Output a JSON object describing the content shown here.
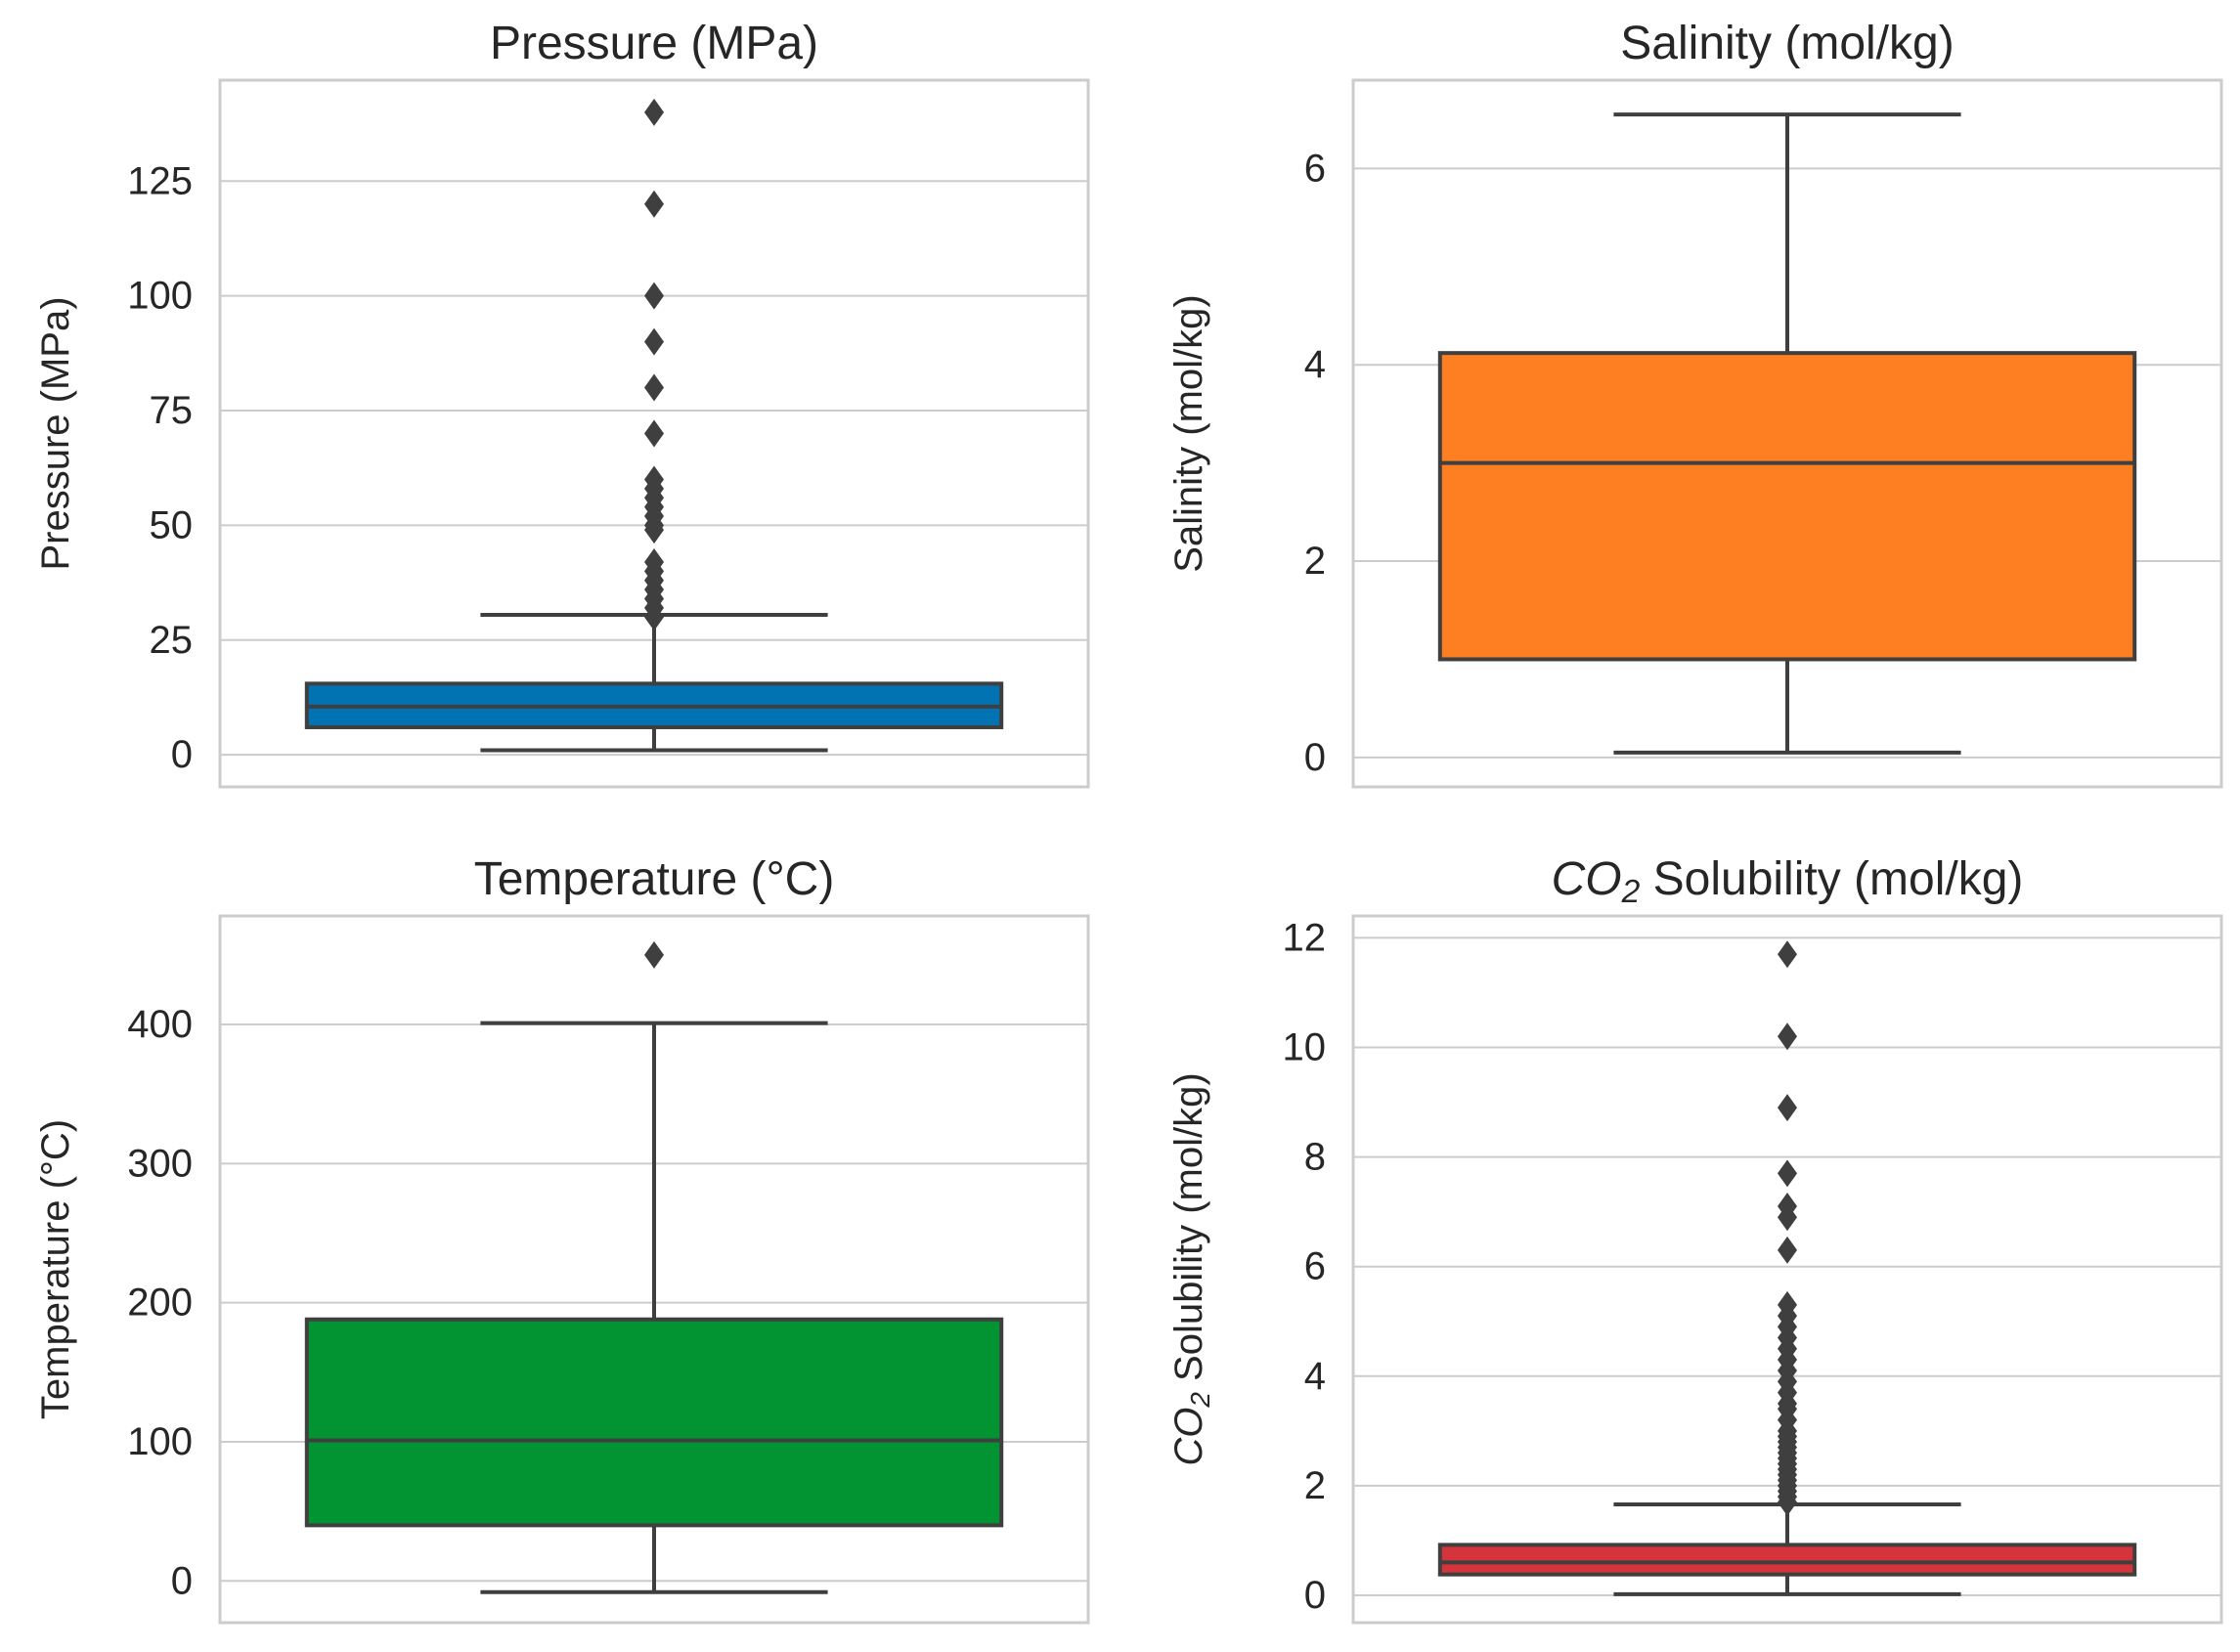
{
  "chart_data": [
    {
      "type": "box",
      "title": "Pressure (MPa)",
      "ylabel": "Pressure (MPa)",
      "ylim": [
        -7,
        147
      ],
      "yticks": [
        0,
        25,
        50,
        75,
        100,
        125
      ],
      "ytick_labels": [
        "0",
        "25",
        "50",
        "75",
        "100",
        "125"
      ],
      "color": "#0173b2",
      "box": {
        "whisker_low": 1,
        "q1": 6,
        "median": 10.5,
        "q3": 15.5,
        "whisker_high": 30.5
      },
      "outliers": [
        30,
        32,
        34,
        36,
        38,
        40,
        42,
        49,
        50,
        52,
        54,
        56,
        58,
        60,
        70,
        80,
        90,
        100,
        120,
        140
      ]
    },
    {
      "type": "box",
      "title": "Salinity (mol/kg)",
      "ylabel": "Salinity (mol/kg)",
      "ylim": [
        -0.3,
        6.9
      ],
      "yticks": [
        0,
        2,
        4,
        6
      ],
      "ytick_labels": [
        "0",
        "2",
        "4",
        "6"
      ],
      "color": "#fe7f22",
      "box": {
        "whisker_low": 0.05,
        "q1": 1.0,
        "median": 3.0,
        "q3": 4.12,
        "whisker_high": 6.55
      },
      "outliers": []
    },
    {
      "type": "box",
      "title": "Temperature (°C)",
      "ylabel": "Temperature (°C)",
      "ylim": [
        -30,
        478
      ],
      "yticks": [
        0,
        100,
        200,
        300,
        400
      ],
      "ytick_labels": [
        "0",
        "100",
        "200",
        "300",
        "400"
      ],
      "color": "#029333",
      "box": {
        "whisker_low": -8,
        "q1": 40,
        "median": 101,
        "q3": 188,
        "whisker_high": 401
      },
      "outliers": [
        450
      ]
    },
    {
      "type": "box",
      "title_prefix": "CO",
      "title_sub": "2",
      "title_suffix": " Solubility (mol/kg)",
      "ylabel_prefix": "CO",
      "ylabel_sub": "2",
      "ylabel_suffix": " Solubility (mol/kg)",
      "ylim": [
        -0.5,
        12.4
      ],
      "yticks": [
        0,
        2,
        4,
        6,
        8,
        10,
        12
      ],
      "ytick_labels": [
        "0",
        "2",
        "4",
        "6",
        "8",
        "10",
        "12"
      ],
      "color": "#d5343a",
      "box": {
        "whisker_low": 0.02,
        "q1": 0.38,
        "median": 0.6,
        "q3": 0.92,
        "whisker_high": 1.66
      },
      "outliers": [
        1.7,
        1.8,
        1.9,
        2.0,
        2.1,
        2.2,
        2.3,
        2.4,
        2.5,
        2.6,
        2.7,
        2.8,
        2.9,
        3.0,
        3.2,
        3.4,
        3.5,
        3.7,
        3.9,
        4.1,
        4.3,
        4.5,
        4.7,
        4.9,
        5.1,
        5.3,
        6.3,
        6.9,
        7.1,
        7.7,
        8.9,
        10.2,
        11.7
      ]
    }
  ]
}
